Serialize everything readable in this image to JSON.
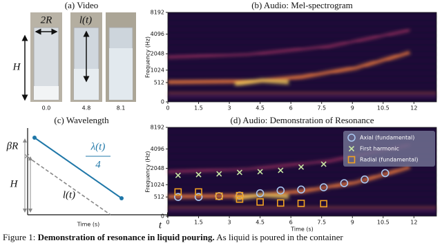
{
  "panel_a": {
    "title": "(a) Video",
    "frame_labels": [
      "0.0",
      "4.8",
      "8.1"
    ],
    "annotations": {
      "radius": "2R",
      "level": "l(t)",
      "height": "H"
    }
  },
  "panel_c": {
    "title": "(c) Wavelength",
    "labels": {
      "beta_r": "βR",
      "height": "H",
      "lambda_num": "λ(t)",
      "lambda_den": "4",
      "level": "l(t)",
      "x_axis": "Time (s)",
      "t": "t"
    }
  },
  "chart_data": [
    {
      "type": "spectrogram",
      "title": "(b) Audio: Mel-spectrogram",
      "y_label": "Frequency (Hz)",
      "yscale": "mel",
      "xlim": [
        0,
        13.1
      ],
      "xticks": [
        0,
        1.5,
        3,
        4.5,
        6,
        7.5,
        9,
        10.5,
        12
      ],
      "ylim": [
        0,
        8192
      ],
      "yticks": [
        0,
        512,
        1024,
        2048,
        4096,
        8192
      ]
    },
    {
      "type": "scatter",
      "title": "(d) Audio: Demonstration of Resonance",
      "x_label": "Time (s)",
      "y_label": "Frequency (Hz)",
      "yscale": "mel",
      "xlim": [
        0,
        13.1
      ],
      "xticks": [
        0,
        1.5,
        3,
        4.5,
        6,
        7.5,
        9,
        10.5,
        12
      ],
      "ylim": [
        0,
        8192
      ],
      "yticks": [
        0,
        512,
        1024,
        2048,
        4096,
        8192
      ],
      "series": [
        {
          "name": "Axial (fundamental)",
          "marker": "circle",
          "color": "#a9c6f0",
          "x": [
            0.5,
            1.5,
            2.5,
            3.5,
            4.5,
            5.5,
            6.5,
            7.6,
            8.6,
            9.6,
            10.6
          ],
          "values": [
            512,
            512,
            540,
            560,
            650,
            760,
            800,
            900,
            1100,
            1300,
            1700
          ]
        },
        {
          "name": "First harmonic",
          "marker": "x",
          "color": "#c9e8a4",
          "x": [
            0.5,
            1.5,
            2.5,
            3.5,
            4.5,
            5.5,
            6.5,
            7.6
          ],
          "values": [
            1550,
            1600,
            1650,
            1750,
            1800,
            1900,
            2150,
            2400
          ]
        },
        {
          "name": "Radial (fundamental)",
          "marker": "square",
          "color": "#f2a322",
          "x": [
            0.5,
            1.5,
            2.5,
            3.5,
            3.5,
            4.5,
            5.5,
            6.5,
            7.6
          ],
          "values": [
            700,
            700,
            540,
            560,
            440,
            350,
            320,
            310,
            300
          ]
        }
      ]
    }
  ],
  "caption": {
    "label": "Figure 1:",
    "bold": "Demonstration of resonance in liquid pouring.",
    "text": "As liquid is poured in the container"
  }
}
